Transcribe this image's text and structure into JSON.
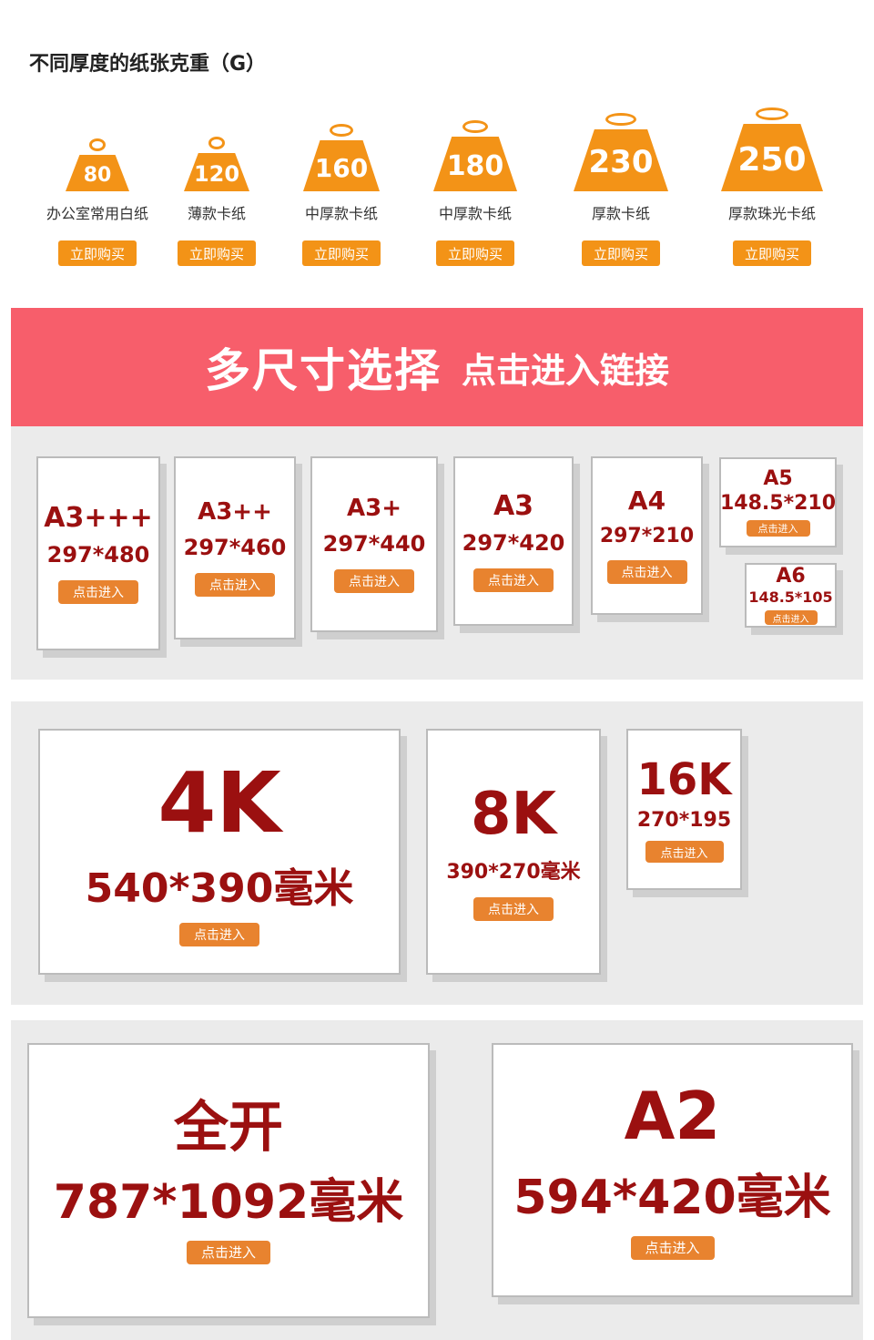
{
  "header": {
    "title": "不同厚度的纸张克重（G）"
  },
  "weights": [
    {
      "value": "80",
      "label": "办公室常用白纸",
      "button": "立即购买"
    },
    {
      "value": "120",
      "label": "薄款卡纸",
      "button": "立即购买"
    },
    {
      "value": "160",
      "label": "中厚款卡纸",
      "button": "立即购买"
    },
    {
      "value": "180",
      "label": "中厚款卡纸",
      "button": "立即购买"
    },
    {
      "value": "230",
      "label": "厚款卡纸",
      "button": "立即购买"
    },
    {
      "value": "250",
      "label": "厚款珠光卡纸",
      "button": "立即购买"
    }
  ],
  "banner": {
    "main": "多尺寸选择",
    "sub": "点击进入链接"
  },
  "sizes": [
    {
      "name": "A3+++",
      "dims": "297*480",
      "button": "点击进入"
    },
    {
      "name": "A3++",
      "dims": "297*460",
      "button": "点击进入"
    },
    {
      "name": "A3+",
      "dims": "297*440",
      "button": "点击进入"
    },
    {
      "name": "A3",
      "dims": "297*420",
      "button": "点击进入"
    },
    {
      "name": "A4",
      "dims": "297*210",
      "button": "点击进入"
    },
    {
      "name": "A5",
      "dims": "148.5*210",
      "button": "点击进入"
    },
    {
      "name": "A6",
      "dims": "148.5*105",
      "button": "点击进入"
    },
    {
      "name": "4K",
      "dims": "540*390毫米",
      "button": "点击进入"
    },
    {
      "name": "8K",
      "dims": "390*270毫米",
      "button": "点击进入"
    },
    {
      "name": "16K",
      "dims": "270*195",
      "button": "点击进入"
    },
    {
      "name": "全开",
      "dims": "787*1092毫米",
      "button": "点击进入"
    },
    {
      "name": "A2",
      "dims": "594*420毫米",
      "button": "点击进入"
    }
  ],
  "colors": {
    "orange": "#f39317",
    "banner": "#f75e6b",
    "dark_red": "#9b1010",
    "button": "#e8832f"
  }
}
